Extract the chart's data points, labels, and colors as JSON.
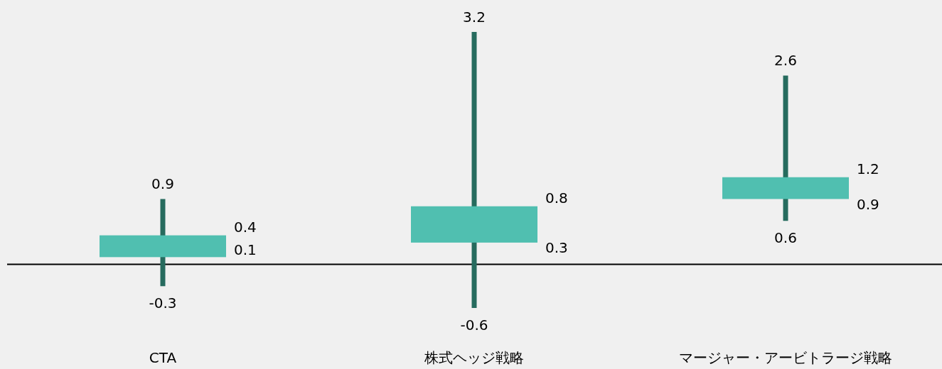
{
  "chart_data": {
    "type": "candlestick",
    "categories": [
      "CTA",
      "株式ヘッジ戦略",
      "マージャー・アービトラージ戦略"
    ],
    "ohlc": [
      [
        0.1,
        0.9,
        -0.3,
        0.4
      ],
      [
        0.3,
        3.2,
        -0.6,
        0.8
      ],
      [
        0.9,
        2.6,
        0.6,
        1.2
      ]
    ],
    "value_labels": [
      [
        "0.1",
        "0.9",
        "-0.3",
        "0.4"
      ],
      [
        "0.3",
        "3.2",
        "-0.6",
        "0.8"
      ],
      [
        "0.9",
        "2.6",
        "0.6",
        "1.2"
      ]
    ],
    "color": "#50bfb0",
    "ref_lines": [
      {
        "axis": "y",
        "value": 0,
        "color": "#000000"
      }
    ]
  }
}
